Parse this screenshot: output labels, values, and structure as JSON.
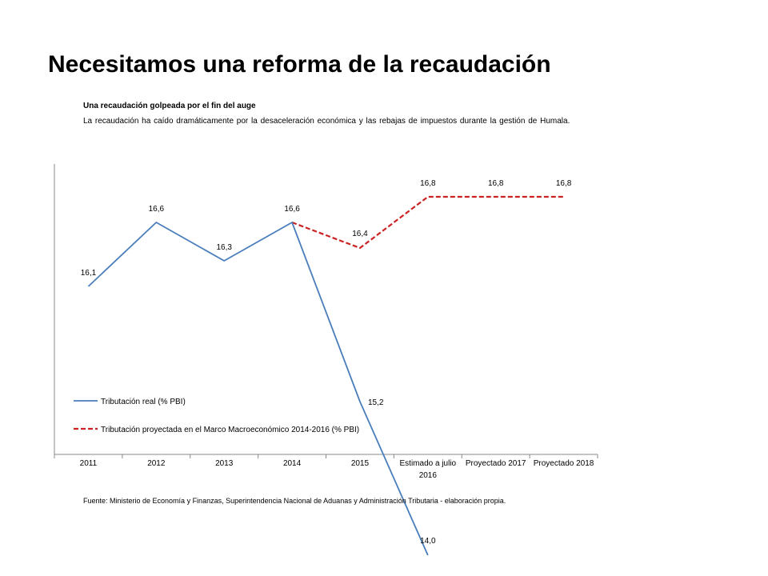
{
  "title": "Necesitamos una reforma de la recaudación",
  "subtitle": "Una recaudación  golpeada  por el fin del auge",
  "description": "La recaudación ha caído dramáticamente  por la desaceleración económica y las rebajas de impuestos durante la gestión de Humala.",
  "source": "Fuente: Ministerio de Economía y Finanzas, Superintendencia Nacional de Aduanas y Administración Tributaria  - elaboración propia.",
  "chart_data": {
    "type": "line",
    "categories": [
      "2011",
      "2012",
      "2013",
      "2014",
      "2015",
      "Estimado a julio 2016",
      "Proyectado 2017",
      "Proyectado 2018"
    ],
    "series": [
      {
        "name": "Tributación real (% PBI)",
        "values": [
          16.1,
          16.6,
          16.3,
          16.6,
          15.2,
          14.0,
          null,
          null
        ],
        "labels": [
          "16,1",
          "16,6",
          "16,3",
          "16,6",
          "15,2",
          "14,0",
          null,
          null
        ],
        "color": "#4a7ebb",
        "dash": "solid"
      },
      {
        "name": "Tributación proyectada en el Marco Macroeconómico 2014-2016 (% PBI)",
        "values": [
          null,
          null,
          null,
          16.6,
          16.4,
          16.8,
          16.8,
          16.8
        ],
        "labels": [
          null,
          null,
          null,
          null,
          "16,4",
          "16,8",
          "16,8",
          "16,8"
        ],
        "color": "#cc2222",
        "dash": "dashed"
      }
    ],
    "legend_position": "bottom-left inside plot",
    "grid": false
  }
}
